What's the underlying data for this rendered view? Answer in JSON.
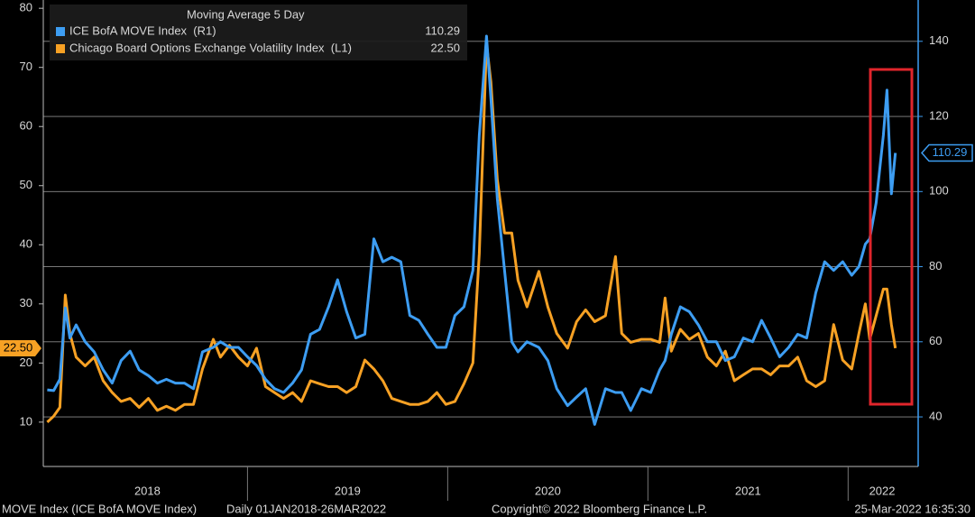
{
  "chart_data": {
    "type": "line",
    "title": "Moving Average 5 Day",
    "x": [
      2018.0,
      2018.032,
      2018.063,
      2018.09,
      2018.113,
      2018.144,
      2018.189,
      2018.234,
      2018.279,
      2018.324,
      2018.369,
      2018.414,
      2018.459,
      2018.505,
      2018.55,
      2018.595,
      2018.64,
      2018.685,
      2018.73,
      2018.775,
      2018.829,
      2018.865,
      2018.91,
      2018.955,
      2019.0,
      2019.045,
      2019.09,
      2019.135,
      2019.18,
      2019.225,
      2019.27,
      2019.315,
      2019.36,
      2019.405,
      2019.45,
      2019.495,
      2019.541,
      2019.586,
      2019.631,
      2019.676,
      2019.721,
      2019.766,
      2019.811,
      2019.856,
      2019.901,
      2019.946,
      2019.991,
      2020.036,
      2020.081,
      2020.126,
      2020.158,
      2020.194,
      2020.216,
      2020.248,
      2020.284,
      2020.32,
      2020.351,
      2020.396,
      2020.455,
      2020.5,
      2020.545,
      2020.599,
      2020.644,
      2020.689,
      2020.734,
      2020.788,
      2020.838,
      2020.869,
      2020.914,
      2020.968,
      2021.014,
      2021.059,
      2021.086,
      2021.117,
      2021.162,
      2021.207,
      2021.252,
      2021.297,
      2021.342,
      2021.387,
      2021.432,
      2021.477,
      2021.523,
      2021.568,
      2021.613,
      2021.658,
      2021.703,
      2021.748,
      2021.793,
      2021.838,
      2021.883,
      2021.928,
      2021.973,
      2022.018,
      2022.054,
      2022.086,
      2022.108,
      2022.14,
      2022.176,
      2022.194,
      2022.216,
      2022.236
    ],
    "xlim": [
      2017.98,
      2022.35
    ],
    "xticks": [
      {
        "value": 2018.5,
        "label": "2018"
      },
      {
        "value": 2019.5,
        "label": "2019"
      },
      {
        "value": 2020.5,
        "label": "2020"
      },
      {
        "value": 2021.5,
        "label": "2021"
      },
      {
        "value": 2022.17,
        "label": "2022"
      }
    ],
    "ylim": [
      2.5,
      81.4
    ],
    "yticks": [
      10,
      20,
      30,
      40,
      50,
      60,
      70,
      80
    ],
    "y2lim": [
      26.8,
      151
    ],
    "y2ticks": [
      40,
      60,
      80,
      100,
      120,
      140
    ],
    "grid": true,
    "series": [
      {
        "name": "ICE BofA MOVE Index  (R1)",
        "color": "#3d9df2",
        "axis": "y2",
        "last_value": 110.29,
        "values": [
          47.2,
          47,
          50,
          69,
          61,
          64.5,
          60,
          57.3,
          52.5,
          49,
          55,
          57.5,
          52.5,
          51,
          49,
          50,
          49,
          49,
          47.5,
          57.3,
          58.5,
          60,
          58.5,
          58.5,
          56,
          53.7,
          50,
          47.5,
          46.5,
          49,
          52.5,
          62,
          63.3,
          69.3,
          76.5,
          68,
          61,
          62,
          87.4,
          81.3,
          82.5,
          81.3,
          67,
          65.7,
          62,
          58.5,
          58.5,
          67,
          69.3,
          79,
          115,
          141.4,
          124.6,
          98,
          79,
          60,
          57.3,
          60,
          58.5,
          55,
          47.5,
          43,
          45.3,
          47.5,
          38,
          47.5,
          46.5,
          46.5,
          41.7,
          47.5,
          46.5,
          52.5,
          55,
          62,
          69.3,
          68,
          64.5,
          60,
          60,
          55,
          56,
          61,
          60,
          65.7,
          61,
          56,
          58.5,
          62,
          61,
          73,
          81.3,
          79,
          81.3,
          77.7,
          80,
          86,
          87.4,
          97,
          115,
          127,
          99.4,
          110.29
        ]
      },
      {
        "name": "Chicago Board Options Exchange Volatility Index  (L1)",
        "color": "#f7a124",
        "axis": "y",
        "last_value": {
          "value": 22.5,
          "label": "22.50"
        },
        "values": [
          10,
          11,
          12.5,
          31.5,
          25,
          21,
          19.5,
          21,
          17,
          15,
          13.5,
          14,
          12.5,
          14,
          12,
          12.7,
          12,
          13,
          13,
          19,
          24,
          21,
          23,
          21,
          19.5,
          22.5,
          16,
          15,
          14,
          15,
          13.5,
          17,
          16.5,
          16,
          16,
          15,
          16,
          20.5,
          19,
          17,
          14,
          13.5,
          13,
          13,
          13.5,
          15,
          13,
          13.5,
          16.5,
          20,
          38.5,
          74,
          67.5,
          51,
          42,
          42,
          34,
          29.5,
          35.5,
          29.5,
          25,
          22.5,
          27,
          29,
          27,
          28,
          38,
          25,
          23.5,
          24,
          24,
          23.5,
          31,
          22,
          25.7,
          24,
          25,
          21,
          19.5,
          22,
          17,
          18,
          19,
          19,
          18,
          19.5,
          19.5,
          21,
          17,
          16,
          17,
          26.5,
          20.5,
          19,
          25,
          30,
          24,
          28,
          32.5,
          32.5,
          26.5,
          22.5
        ]
      }
    ],
    "source": "MOVE Index (ICE BofA MOVE Index)",
    "period": "Daily 01JAN2018-26MAR2022",
    "copyright": "Copyright© 2022 Bloomberg Finance L.P.",
    "timestamp": "25-Mar-2022 16:35:30"
  }
}
